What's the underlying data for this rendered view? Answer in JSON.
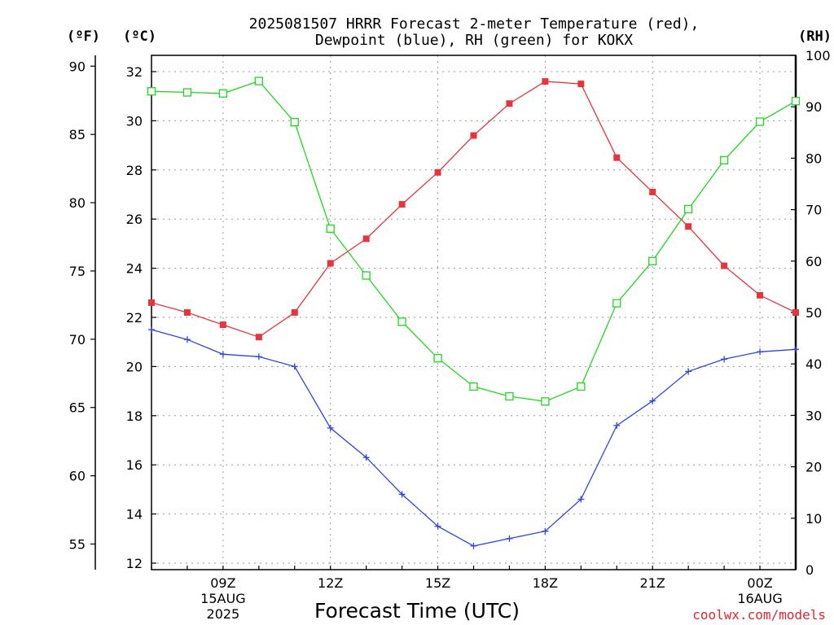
{
  "title": {
    "line1": "2025081507 HRRR Forecast 2-meter Temperature (red),",
    "line2": "Dewpoint (blue), RH (green) for KOKX"
  },
  "units": {
    "fahrenheit": "(ºF)",
    "celsius": "(ºC)",
    "rh": "(RH)"
  },
  "xlabel": "Forecast Time (UTC)",
  "credit": "coolwx.com/models",
  "colors": {
    "temperature": "#e8353b",
    "dewpoint": "#2f44e0",
    "rh": "#1fd81f",
    "grid": "#9a9a9a"
  },
  "chart_data": {
    "type": "line",
    "title": "2025081507 HRRR Forecast 2-meter Temperature (red), Dewpoint (blue), RH (green) for KOKX",
    "xlabel": "Forecast Time (UTC)",
    "x": [
      "07Z",
      "08Z",
      "09Z",
      "10Z",
      "11Z",
      "12Z",
      "13Z",
      "14Z",
      "15Z",
      "16Z",
      "17Z",
      "18Z",
      "19Z",
      "20Z",
      "21Z",
      "22Z",
      "23Z",
      "00Z",
      "01Z"
    ],
    "x_tick_labels": [
      {
        "label": "09Z",
        "sub": [
          "15AUG",
          "2025"
        ]
      },
      {
        "label": "12Z",
        "sub": []
      },
      {
        "label": "15Z",
        "sub": []
      },
      {
        "label": "18Z",
        "sub": []
      },
      {
        "label": "21Z",
        "sub": []
      },
      {
        "label": "00Z",
        "sub": [
          "16AUG"
        ]
      }
    ],
    "x_tick_positions": [
      2,
      5,
      8,
      11,
      14,
      17
    ],
    "y_left_celsius": {
      "range": [
        12,
        32
      ],
      "ticks": [
        12,
        14,
        16,
        18,
        20,
        22,
        24,
        26,
        28,
        30,
        32
      ]
    },
    "y_left_fahrenheit": {
      "range": [
        53.6,
        89.6
      ],
      "ticks": [
        55,
        60,
        65,
        70,
        75,
        80,
        85,
        90
      ]
    },
    "y_right_rh": {
      "range": [
        0,
        100
      ],
      "ticks": [
        0,
        10,
        20,
        30,
        40,
        50,
        60,
        70,
        80,
        90,
        100
      ]
    },
    "grid": true,
    "series": [
      {
        "name": "Temperature",
        "axis": "celsius",
        "marker": "filled-square",
        "values": [
          22.6,
          22.2,
          21.7,
          21.2,
          22.2,
          24.2,
          25.2,
          26.6,
          27.9,
          29.4,
          30.7,
          31.6,
          31.5,
          28.5,
          27.1,
          25.7,
          24.1,
          22.9,
          22.2
        ]
      },
      {
        "name": "Dewpoint",
        "axis": "celsius",
        "marker": "plus",
        "values": [
          21.5,
          21.1,
          20.5,
          20.4,
          20.0,
          17.5,
          16.3,
          14.8,
          13.5,
          12.7,
          13.0,
          13.3,
          14.6,
          17.6,
          18.6,
          19.8,
          20.3,
          20.6,
          20.7
        ]
      },
      {
        "name": "RH",
        "axis": "rh",
        "marker": "open-square",
        "values": [
          93.0,
          92.8,
          92.6,
          95.0,
          87.0,
          66.3,
          57.2,
          48.2,
          41.1,
          35.6,
          33.7,
          32.7,
          35.6,
          51.8,
          60.0,
          70.1,
          79.6,
          87.1,
          91.1
        ]
      }
    ]
  }
}
